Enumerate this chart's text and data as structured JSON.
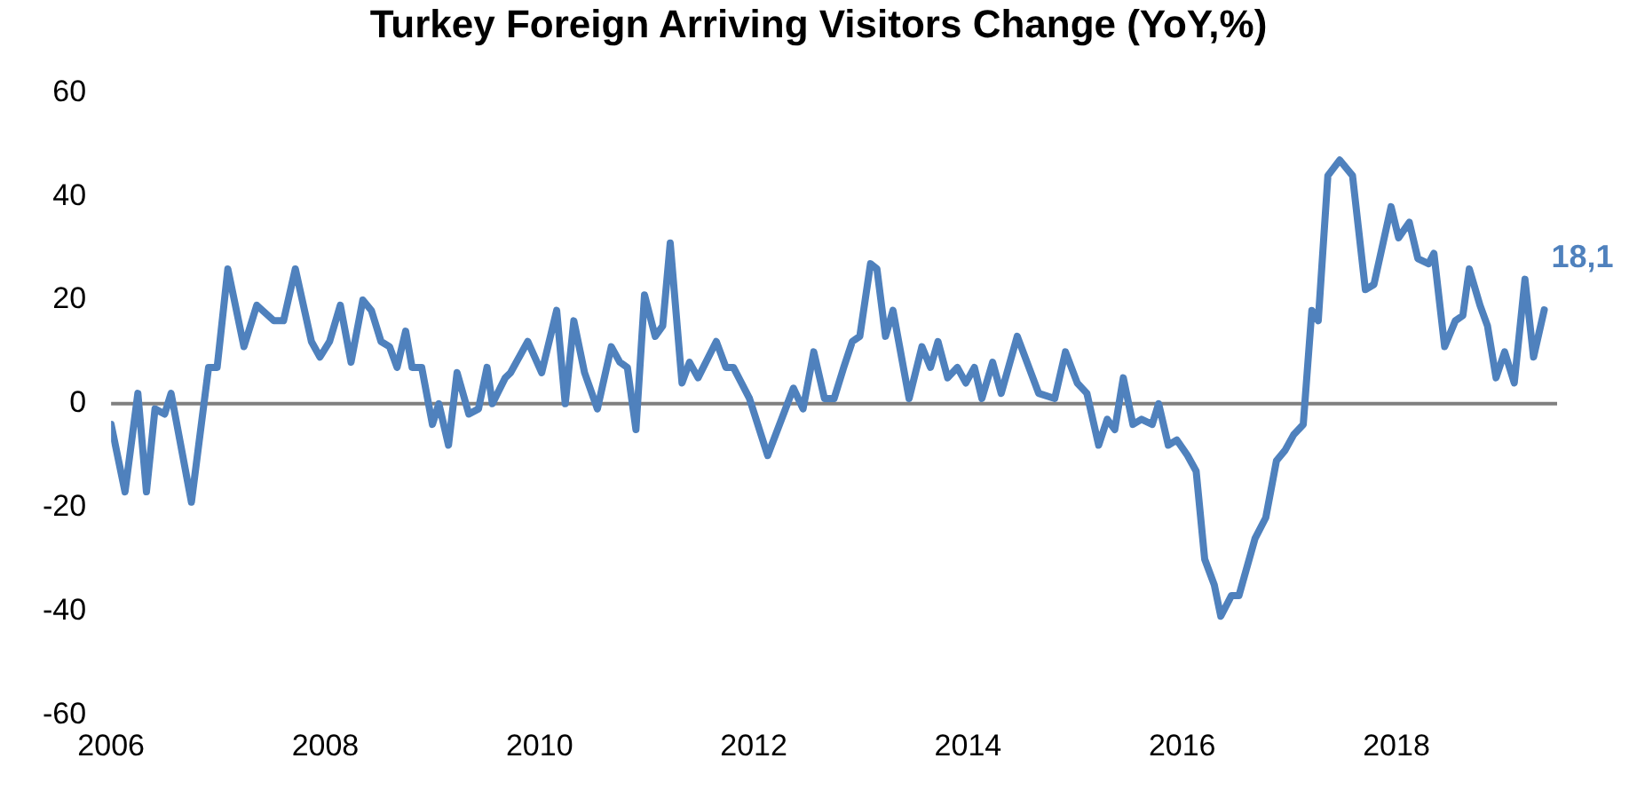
{
  "chart_data": {
    "type": "line",
    "title": "Turkey Foreign Arriving Visitors Change (YoY,%)",
    "x": [
      2006.0,
      2006.13,
      2006.25,
      2006.33,
      2006.41,
      2006.5,
      2006.56,
      2006.75,
      2006.91,
      2006.99,
      2007.09,
      2007.24,
      2007.36,
      2007.52,
      2007.61,
      2007.72,
      2007.87,
      2007.95,
      2008.04,
      2008.14,
      2008.24,
      2008.35,
      2008.43,
      2008.52,
      2008.6,
      2008.67,
      2008.75,
      2008.81,
      2008.9,
      2009.0,
      2009.06,
      2009.15,
      2009.23,
      2009.34,
      2009.43,
      2009.51,
      2009.56,
      2009.68,
      2009.73,
      2009.89,
      2010.02,
      2010.16,
      2010.24,
      2010.32,
      2010.42,
      2010.54,
      2010.67,
      2010.75,
      2010.82,
      2010.9,
      2010.98,
      2011.08,
      2011.15,
      2011.22,
      2011.33,
      2011.4,
      2011.48,
      2011.65,
      2011.74,
      2011.81,
      2011.96,
      2012.13,
      2012.37,
      2012.46,
      2012.56,
      2012.66,
      2012.75,
      2012.84,
      2012.92,
      2012.99,
      2013.09,
      2013.15,
      2013.23,
      2013.3,
      2013.45,
      2013.57,
      2013.65,
      2013.72,
      2013.81,
      2013.9,
      2013.98,
      2014.06,
      2014.13,
      2014.23,
      2014.31,
      2014.46,
      2014.66,
      2014.81,
      2014.91,
      2015.02,
      2015.11,
      2015.22,
      2015.3,
      2015.37,
      2015.45,
      2015.54,
      2015.62,
      2015.72,
      2015.78,
      2015.87,
      2015.95,
      2016.05,
      2016.13,
      2016.21,
      2016.3,
      2016.36,
      2016.46,
      2016.53,
      2016.68,
      2016.78,
      2016.88,
      2016.96,
      2017.04,
      2017.13,
      2017.21,
      2017.27,
      2017.36,
      2017.47,
      2017.59,
      2017.71,
      2017.79,
      2017.95,
      2018.02,
      2018.12,
      2018.2,
      2018.3,
      2018.35,
      2018.45,
      2018.55,
      2018.62,
      2018.68,
      2018.78,
      2018.85,
      2018.93,
      2019.01,
      2019.1,
      2019.2,
      2019.28,
      2019.38
    ],
    "series": [
      {
        "color": "#4f81bd",
        "values": [
          -4,
          -17,
          2,
          -17,
          -1,
          -2,
          2,
          -19,
          7,
          7,
          26,
          11,
          19,
          16,
          16,
          26,
          12,
          9,
          12,
          19,
          8,
          20,
          18,
          12,
          11,
          7,
          14,
          7,
          7,
          -4,
          0,
          -8,
          6,
          -2,
          -1,
          7,
          0,
          5,
          6,
          12,
          6,
          18,
          0,
          16,
          6,
          -1,
          11,
          8,
          7,
          -5,
          21,
          13,
          15,
          31,
          4,
          8,
          5,
          12,
          7,
          7,
          1,
          -10,
          3,
          -1,
          10,
          1,
          1,
          7,
          12,
          13,
          27,
          26,
          13,
          18,
          1,
          11,
          7,
          12,
          5,
          7,
          4,
          7,
          1,
          8,
          2,
          13,
          2,
          1,
          10,
          4,
          2,
          -8,
          -3,
          -5,
          5,
          -4,
          -3,
          -4,
          0,
          -8,
          -7,
          -10,
          -13,
          -30,
          -35,
          -41,
          -37,
          -37,
          -26,
          -22,
          -11,
          -9,
          -6,
          -4,
          18,
          16,
          44,
          47,
          44,
          22,
          23,
          38,
          32,
          35,
          28,
          27,
          29,
          11,
          16,
          17,
          26,
          19,
          15,
          5,
          10,
          4,
          24,
          9,
          18.1
        ]
      }
    ],
    "xlim": [
      2006,
      2019.5
    ],
    "xticks": [
      2006,
      2008,
      2010,
      2012,
      2014,
      2016,
      2018
    ],
    "ylim": [
      -60,
      60
    ],
    "yticks": [
      -60,
      -40,
      -20,
      0,
      20,
      40,
      60
    ],
    "grid": false,
    "legend": false,
    "marker": "none",
    "line_style": "solid",
    "ref_lines": [
      {
        "axis": "y",
        "value": 0,
        "color": "#808080"
      }
    ],
    "annotations": [
      {
        "text": "18,1",
        "x": 2019.38,
        "y": 18.1
      }
    ]
  }
}
